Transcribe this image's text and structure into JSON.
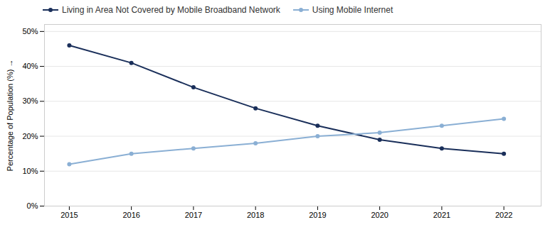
{
  "chart_data": {
    "type": "line",
    "x": [
      2015,
      2016,
      2017,
      2018,
      2019,
      2020,
      2021,
      2022
    ],
    "series": [
      {
        "name": "Living in Area Not Covered by Mobile Broadband Network",
        "color": "#1a2f5a",
        "marker": "circle",
        "values": [
          46,
          41,
          34,
          28,
          23,
          19,
          16.5,
          15
        ]
      },
      {
        "name": "Using Mobile Internet",
        "color": "#8aafd4",
        "marker": "circle",
        "values": [
          12,
          15,
          16.5,
          18,
          20,
          21,
          23,
          25
        ]
      }
    ],
    "xlim": [
      2014.6,
      2022.6
    ],
    "xticks": [
      2015,
      2016,
      2017,
      2018,
      2019,
      2020,
      2021,
      2022
    ],
    "ylim": [
      0,
      52
    ],
    "yticks": [
      {
        "value": 0,
        "label": "0%"
      },
      {
        "value": 10,
        "label": "10%"
      },
      {
        "value": 20,
        "label": "20%"
      },
      {
        "value": 30,
        "label": "30%"
      },
      {
        "value": 40,
        "label": "40%"
      },
      {
        "value": 50,
        "label": "50%"
      }
    ],
    "ylabel": "Percentage of Population (%)",
    "grid": true,
    "legend": "upper left"
  }
}
